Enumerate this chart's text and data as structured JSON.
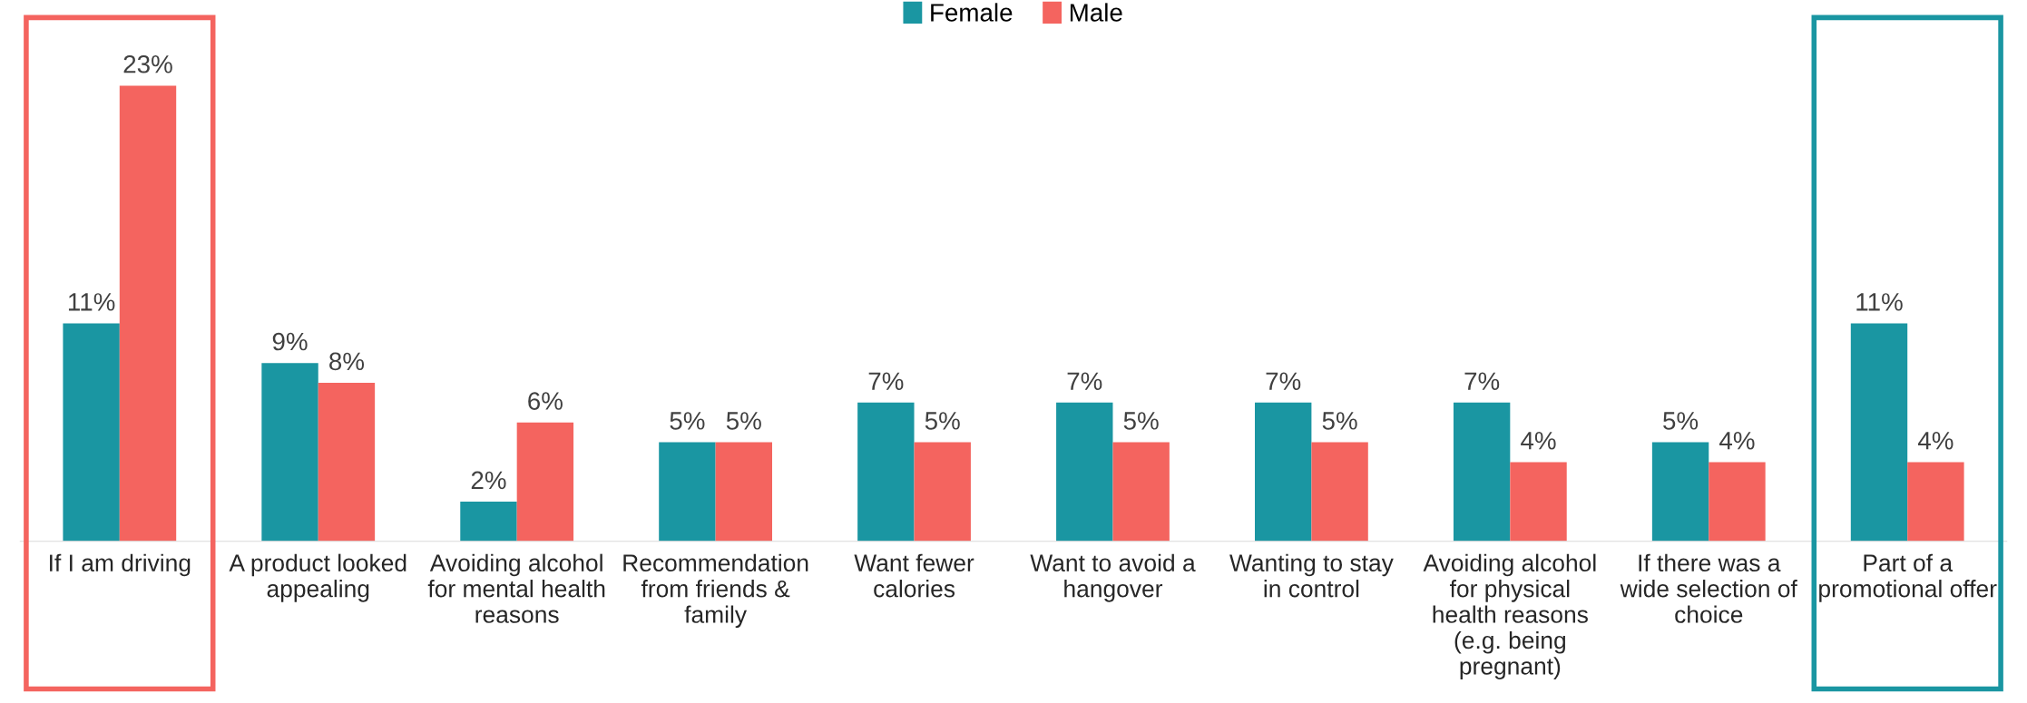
{
  "chart_data": {
    "type": "bar",
    "categories": [
      "If I am driving",
      "A product looked\nappealing",
      "Avoiding alcohol\nfor mental health\nreasons",
      "Recommendation\nfrom friends &\nfamily",
      "Want fewer\ncalories",
      "Want to avoid a\nhangover",
      "Wanting to stay\nin control",
      "Avoiding alcohol\nfor physical\nhealth reasons\n(e.g. being\npregnant)",
      "If there was a\nwide selection of\nchoice",
      "Part of a\npromotional offer"
    ],
    "series": [
      {
        "name": "Female",
        "color": "#1a96a2",
        "values": [
          11,
          9,
          2,
          5,
          7,
          7,
          7,
          7,
          5,
          11
        ],
        "value_labels": [
          "11%",
          "9%",
          "2%",
          "5%",
          "7%",
          "7%",
          "7%",
          "7%",
          "5%",
          "11%"
        ]
      },
      {
        "name": "Male",
        "color": "#f4645f",
        "values": [
          23,
          8,
          6,
          5,
          5,
          5,
          5,
          4,
          4,
          4
        ],
        "value_labels": [
          "23%",
          "8%",
          "6%",
          "5%",
          "5%",
          "5%",
          "5%",
          "4%",
          "4%",
          "4%"
        ]
      }
    ],
    "legend": "top",
    "grid": false,
    "tick_labels": "x"
  }
}
